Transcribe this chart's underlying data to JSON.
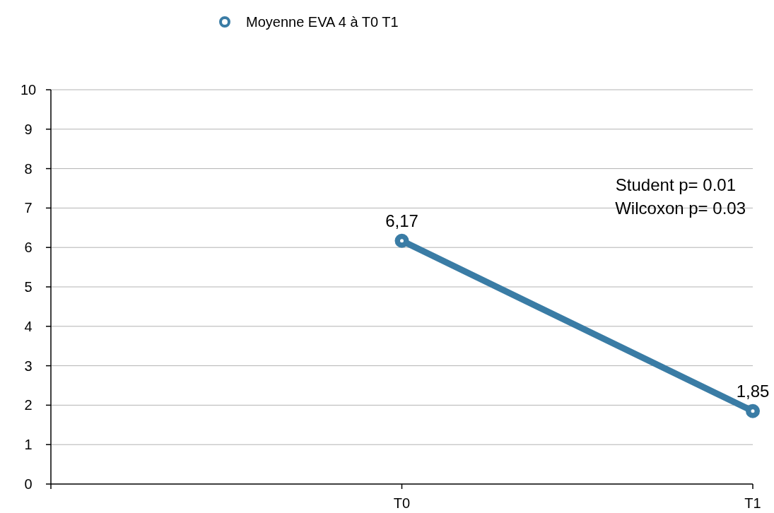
{
  "chart_data": {
    "type": "line",
    "categories": [
      null,
      "T0",
      "T1"
    ],
    "series": [
      {
        "name": "Moyenne EVA 4 à T0 T1",
        "color": "#3a7ca5",
        "values": [
          null,
          6.17,
          1.85
        ],
        "value_labels": [
          null,
          "6,17",
          "1,85"
        ]
      }
    ],
    "ylim": [
      0,
      10
    ],
    "yticks": [
      0,
      1,
      2,
      3,
      4,
      5,
      6,
      7,
      8,
      9,
      10
    ],
    "grid": "y",
    "legend": "top",
    "marker": "circle",
    "line_style": "solid",
    "annotations": [
      "Student p= 0.01",
      "Wilcoxon p= 0.03"
    ]
  }
}
